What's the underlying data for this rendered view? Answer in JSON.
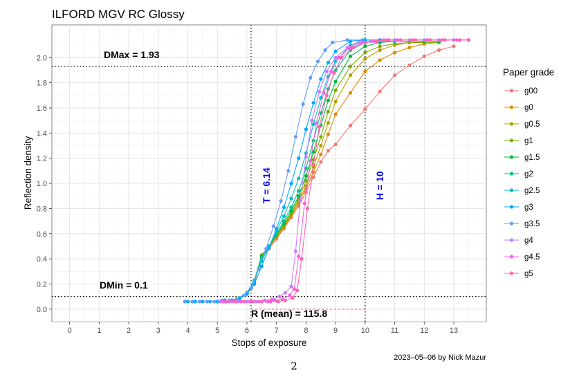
{
  "page_number": "2",
  "chart_data": {
    "type": "line",
    "title": "ILFORD MGV RC Glossy",
    "xlabel": "Stops of exposure",
    "ylabel": "Reflection density",
    "xlim": [
      -0.6,
      14.1
    ],
    "ylim": [
      -0.1,
      2.26
    ],
    "x_ticks": [
      "0",
      "1",
      "2",
      "3",
      "4",
      "5",
      "6",
      "7",
      "8",
      "9",
      "10",
      "11",
      "12",
      "13"
    ],
    "y_ticks": [
      "0.0",
      "0.2",
      "0.4",
      "0.6",
      "0.8",
      "1.0",
      "1.2",
      "1.4",
      "1.6",
      "1.8",
      "2.0"
    ],
    "grid": true,
    "legend_title": "Paper grade",
    "legend_position": "right",
    "caption": "2023–05–06 by Nick Mazur",
    "annotations": {
      "dmax": {
        "label": "DMax =  1.93",
        "value": 1.93
      },
      "dmin": {
        "label": "DMin =  0.1",
        "value": 0.1
      },
      "t": {
        "label": "T = 6.14",
        "value": 6.14
      },
      "h": {
        "label": "H = 10",
        "value": 10
      },
      "r": {
        "label": "R (mean) = 115.8"
      }
    },
    "series": [
      {
        "name": "g00",
        "color": "#F8766D",
        "points": [
          [
            5.0,
            0.06
          ],
          [
            5.25,
            0.06
          ],
          [
            5.5,
            0.07
          ],
          [
            5.75,
            0.08
          ],
          [
            6.0,
            0.12
          ],
          [
            6.25,
            0.2
          ],
          [
            6.5,
            0.42
          ],
          [
            6.75,
            0.48
          ],
          [
            7.0,
            0.56
          ],
          [
            7.25,
            0.64
          ],
          [
            7.5,
            0.73
          ],
          [
            7.75,
            0.82
          ],
          [
            8.0,
            0.93
          ],
          [
            8.25,
            1.05
          ],
          [
            8.5,
            1.17
          ],
          [
            8.75,
            1.26
          ],
          [
            9.0,
            1.31
          ],
          [
            9.5,
            1.46
          ],
          [
            10.0,
            1.59
          ],
          [
            10.5,
            1.73
          ],
          [
            11.0,
            1.86
          ],
          [
            11.5,
            1.94
          ],
          [
            12.0,
            2.01
          ],
          [
            12.5,
            2.06
          ],
          [
            13.0,
            2.09
          ]
        ]
      },
      {
        "name": "g0",
        "color": "#DE8C00",
        "points": [
          [
            5.0,
            0.06
          ],
          [
            5.25,
            0.07
          ],
          [
            5.5,
            0.07
          ],
          [
            5.75,
            0.09
          ],
          [
            6.0,
            0.13
          ],
          [
            6.25,
            0.21
          ],
          [
            6.5,
            0.43
          ],
          [
            6.75,
            0.49
          ],
          [
            7.0,
            0.57
          ],
          [
            7.25,
            0.65
          ],
          [
            7.5,
            0.74
          ],
          [
            7.75,
            0.84
          ],
          [
            8.0,
            0.96
          ],
          [
            8.25,
            1.09
          ],
          [
            8.5,
            1.23
          ],
          [
            8.75,
            1.39
          ],
          [
            9.0,
            1.55
          ],
          [
            9.5,
            1.72
          ],
          [
            10.0,
            1.89
          ],
          [
            10.5,
            1.98
          ],
          [
            11.0,
            2.04
          ],
          [
            11.5,
            2.08
          ],
          [
            12.0,
            2.11
          ],
          [
            12.5,
            2.12
          ]
        ]
      },
      {
        "name": "g0.5",
        "color": "#B79F00",
        "points": [
          [
            5.0,
            0.06
          ],
          [
            5.25,
            0.07
          ],
          [
            5.5,
            0.07
          ],
          [
            5.75,
            0.09
          ],
          [
            6.0,
            0.13
          ],
          [
            6.25,
            0.22
          ],
          [
            6.5,
            0.43
          ],
          [
            6.75,
            0.5
          ],
          [
            7.0,
            0.58
          ],
          [
            7.25,
            0.66
          ],
          [
            7.5,
            0.75
          ],
          [
            7.75,
            0.86
          ],
          [
            8.0,
            0.98
          ],
          [
            8.25,
            1.13
          ],
          [
            8.5,
            1.3
          ],
          [
            8.75,
            1.48
          ],
          [
            9.0,
            1.65
          ],
          [
            9.5,
            1.86
          ],
          [
            10.0,
            1.99
          ],
          [
            10.5,
            2.06
          ],
          [
            11.0,
            2.1
          ],
          [
            11.5,
            2.12
          ],
          [
            12.0,
            2.12
          ]
        ]
      },
      {
        "name": "g1",
        "color": "#7CAE00",
        "points": [
          [
            5.0,
            0.06
          ],
          [
            5.25,
            0.07
          ],
          [
            5.5,
            0.07
          ],
          [
            5.75,
            0.09
          ],
          [
            6.0,
            0.13
          ],
          [
            6.25,
            0.22
          ],
          [
            6.5,
            0.43
          ],
          [
            6.75,
            0.5
          ],
          [
            7.0,
            0.59
          ],
          [
            7.25,
            0.67
          ],
          [
            7.5,
            0.76
          ],
          [
            7.75,
            0.88
          ],
          [
            8.0,
            1.02
          ],
          [
            8.25,
            1.19
          ],
          [
            8.5,
            1.37
          ],
          [
            8.75,
            1.57
          ],
          [
            9.0,
            1.74
          ],
          [
            9.5,
            1.93
          ],
          [
            10.0,
            2.04
          ],
          [
            10.5,
            2.09
          ],
          [
            11.0,
            2.11
          ],
          [
            11.5,
            2.12
          ],
          [
            12.0,
            2.12
          ],
          [
            12.5,
            2.12
          ]
        ]
      },
      {
        "name": "g1.5",
        "color": "#00BA38",
        "points": [
          [
            5.0,
            0.06
          ],
          [
            5.25,
            0.07
          ],
          [
            5.5,
            0.07
          ],
          [
            5.75,
            0.09
          ],
          [
            6.0,
            0.13
          ],
          [
            6.25,
            0.23
          ],
          [
            6.5,
            0.42
          ],
          [
            6.75,
            0.5
          ],
          [
            7.0,
            0.59
          ],
          [
            7.25,
            0.68
          ],
          [
            7.5,
            0.78
          ],
          [
            7.75,
            0.9
          ],
          [
            8.0,
            1.06
          ],
          [
            8.25,
            1.25
          ],
          [
            8.5,
            1.46
          ],
          [
            8.75,
            1.66
          ],
          [
            9.0,
            1.81
          ],
          [
            9.5,
            2.01
          ],
          [
            10.0,
            2.09
          ],
          [
            10.5,
            2.12
          ],
          [
            11.0,
            2.13
          ],
          [
            12.0,
            2.13
          ],
          [
            12.5,
            2.13
          ]
        ]
      },
      {
        "name": "g2",
        "color": "#00C08B",
        "points": [
          [
            5.0,
            0.06
          ],
          [
            5.25,
            0.07
          ],
          [
            5.5,
            0.07
          ],
          [
            5.75,
            0.09
          ],
          [
            6.0,
            0.13
          ],
          [
            6.25,
            0.23
          ],
          [
            6.5,
            0.41
          ],
          [
            6.75,
            0.5
          ],
          [
            7.0,
            0.6
          ],
          [
            7.25,
            0.7
          ],
          [
            7.5,
            0.81
          ],
          [
            7.75,
            0.94
          ],
          [
            8.0,
            1.12
          ],
          [
            8.25,
            1.34
          ],
          [
            8.5,
            1.56
          ],
          [
            8.75,
            1.75
          ],
          [
            9.0,
            1.9
          ],
          [
            9.5,
            2.06
          ],
          [
            10.0,
            2.12
          ],
          [
            10.5,
            2.13
          ],
          [
            11.0,
            2.13
          ],
          [
            12.0,
            2.13
          ]
        ]
      },
      {
        "name": "g2.5",
        "color": "#00BFC4",
        "points": [
          [
            5.0,
            0.06
          ],
          [
            5.25,
            0.07
          ],
          [
            5.5,
            0.07
          ],
          [
            5.75,
            0.09
          ],
          [
            6.0,
            0.13
          ],
          [
            6.25,
            0.23
          ],
          [
            6.5,
            0.38
          ],
          [
            6.75,
            0.5
          ],
          [
            7.0,
            0.62
          ],
          [
            7.25,
            0.74
          ],
          [
            7.5,
            0.88
          ],
          [
            7.75,
            1.04
          ],
          [
            8.0,
            1.24
          ],
          [
            8.25,
            1.47
          ],
          [
            8.5,
            1.68
          ],
          [
            8.75,
            1.85
          ],
          [
            9.0,
            1.97
          ],
          [
            9.5,
            2.1
          ],
          [
            10.0,
            2.14
          ],
          [
            10.5,
            2.14
          ],
          [
            11.0,
            2.14
          ],
          [
            12.0,
            2.14
          ]
        ]
      },
      {
        "name": "g3",
        "color": "#00A9FF",
        "points": [
          [
            4.0,
            0.06
          ],
          [
            4.25,
            0.06
          ],
          [
            4.5,
            0.06
          ],
          [
            4.75,
            0.06
          ],
          [
            5.0,
            0.06
          ],
          [
            5.25,
            0.07
          ],
          [
            5.5,
            0.07
          ],
          [
            5.75,
            0.08
          ],
          [
            6.0,
            0.12
          ],
          [
            6.25,
            0.2
          ],
          [
            6.5,
            0.34
          ],
          [
            6.75,
            0.49
          ],
          [
            7.0,
            0.64
          ],
          [
            7.25,
            0.81
          ],
          [
            7.5,
            1.0
          ],
          [
            7.75,
            1.2
          ],
          [
            8.0,
            1.43
          ],
          [
            8.25,
            1.64
          ],
          [
            8.5,
            1.83
          ],
          [
            8.75,
            1.96
          ],
          [
            9.0,
            2.05
          ],
          [
            9.5,
            2.13
          ],
          [
            10.0,
            2.14
          ],
          [
            10.5,
            2.14
          ],
          [
            11.0,
            2.14
          ]
        ]
      },
      {
        "name": "g3.5",
        "color": "#619CFF",
        "points": [
          [
            3.9,
            0.06
          ],
          [
            4.15,
            0.06
          ],
          [
            4.4,
            0.06
          ],
          [
            4.65,
            0.06
          ],
          [
            4.9,
            0.06
          ],
          [
            5.15,
            0.07
          ],
          [
            5.4,
            0.07
          ],
          [
            5.65,
            0.08
          ],
          [
            5.9,
            0.11
          ],
          [
            6.15,
            0.17
          ],
          [
            6.4,
            0.32
          ],
          [
            6.65,
            0.48
          ],
          [
            6.9,
            0.66
          ],
          [
            7.15,
            0.86
          ],
          [
            7.4,
            1.1
          ],
          [
            7.65,
            1.37
          ],
          [
            7.9,
            1.63
          ],
          [
            8.15,
            1.84
          ],
          [
            8.4,
            1.97
          ],
          [
            8.65,
            2.06
          ],
          [
            8.9,
            2.12
          ],
          [
            9.4,
            2.14
          ],
          [
            9.9,
            2.14
          ]
        ]
      },
      {
        "name": "g4",
        "color": "#C77CFF",
        "points": [
          [
            5.1,
            0.06
          ],
          [
            5.4,
            0.06
          ],
          [
            5.7,
            0.06
          ],
          [
            6.0,
            0.06
          ],
          [
            6.3,
            0.06
          ],
          [
            6.6,
            0.07
          ],
          [
            6.85,
            0.08
          ],
          [
            7.1,
            0.1
          ],
          [
            7.3,
            0.13
          ],
          [
            7.5,
            0.18
          ],
          [
            7.65,
            0.46
          ],
          [
            7.8,
            0.86
          ],
          [
            8.0,
            1.21
          ],
          [
            8.2,
            1.5
          ],
          [
            8.45,
            1.73
          ],
          [
            8.7,
            1.89
          ],
          [
            9.0,
            2.0
          ],
          [
            9.4,
            2.08
          ],
          [
            9.8,
            2.12
          ],
          [
            10.2,
            2.13
          ],
          [
            10.6,
            2.14
          ],
          [
            11.0,
            2.14
          ],
          [
            11.5,
            2.14
          ],
          [
            12.0,
            2.14
          ],
          [
            12.5,
            2.14
          ],
          [
            13.0,
            2.14
          ],
          [
            13.5,
            2.14
          ]
        ]
      },
      {
        "name": "g4.5",
        "color": "#F564E3",
        "points": [
          [
            5.2,
            0.06
          ],
          [
            5.5,
            0.06
          ],
          [
            5.8,
            0.06
          ],
          [
            6.1,
            0.06
          ],
          [
            6.4,
            0.06
          ],
          [
            6.7,
            0.06
          ],
          [
            6.95,
            0.07
          ],
          [
            7.2,
            0.08
          ],
          [
            7.45,
            0.11
          ],
          [
            7.6,
            0.16
          ],
          [
            7.75,
            0.42
          ],
          [
            7.95,
            0.84
          ],
          [
            8.15,
            1.18
          ],
          [
            8.35,
            1.48
          ],
          [
            8.6,
            1.72
          ],
          [
            8.85,
            1.89
          ],
          [
            9.1,
            2.0
          ],
          [
            9.5,
            2.08
          ],
          [
            9.9,
            2.12
          ],
          [
            10.3,
            2.13
          ],
          [
            10.7,
            2.14
          ],
          [
            11.1,
            2.14
          ],
          [
            11.6,
            2.14
          ],
          [
            12.1,
            2.14
          ],
          [
            12.6,
            2.14
          ],
          [
            13.1,
            2.14
          ],
          [
            13.5,
            2.14
          ]
        ]
      },
      {
        "name": "g5",
        "color": "#FF64B0",
        "points": [
          [
            5.3,
            0.06
          ],
          [
            5.6,
            0.06
          ],
          [
            5.9,
            0.06
          ],
          [
            6.2,
            0.06
          ],
          [
            6.5,
            0.06
          ],
          [
            6.8,
            0.06
          ],
          [
            7.05,
            0.06
          ],
          [
            7.3,
            0.07
          ],
          [
            7.55,
            0.09
          ],
          [
            7.7,
            0.15
          ],
          [
            7.85,
            0.4
          ],
          [
            8.05,
            0.8
          ],
          [
            8.25,
            1.15
          ],
          [
            8.45,
            1.45
          ],
          [
            8.7,
            1.7
          ],
          [
            8.95,
            1.88
          ],
          [
            9.2,
            2.0
          ],
          [
            9.6,
            2.08
          ],
          [
            10.0,
            2.12
          ],
          [
            10.4,
            2.13
          ],
          [
            10.8,
            2.14
          ],
          [
            11.2,
            2.14
          ],
          [
            11.7,
            2.14
          ],
          [
            12.2,
            2.14
          ],
          [
            12.7,
            2.14
          ],
          [
            13.2,
            2.14
          ],
          [
            13.5,
            2.14
          ]
        ]
      }
    ]
  }
}
